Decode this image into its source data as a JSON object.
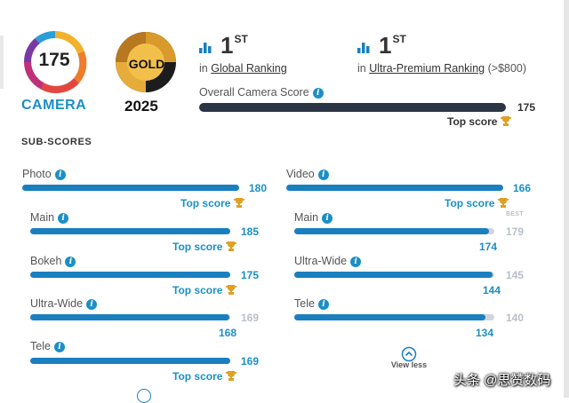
{
  "badge": {
    "camera_score": "175",
    "camera_label": "CAMERA",
    "gold_label": "GOLD",
    "gold_year": "2025"
  },
  "rankings": {
    "global": {
      "rank": "1",
      "suffix": "ST",
      "prefix": "in",
      "link": "Global Ranking"
    },
    "ultra": {
      "rank": "1",
      "suffix": "ST",
      "prefix": "in",
      "link": "Ultra-Premium Ranking",
      "note": "(>$800)"
    }
  },
  "overall": {
    "label": "Overall Camera Score",
    "value": "175",
    "max": 175,
    "top_score": "Top score"
  },
  "subscores_heading": "SUB-SCORES",
  "photo": {
    "label": "Photo",
    "value": "180",
    "top_score": "Top score",
    "items": [
      {
        "label": "Main",
        "value": "185",
        "top_score": "Top score"
      },
      {
        "label": "Bokeh",
        "value": "175",
        "top_score": "Top score"
      },
      {
        "label": "Ultra-Wide",
        "best": "169",
        "value": "168"
      },
      {
        "label": "Tele",
        "value": "169",
        "top_score": "Top score"
      }
    ]
  },
  "video": {
    "label": "Video",
    "value": "166",
    "top_score": "Top score",
    "items": [
      {
        "label": "Main",
        "best_label": "BEST",
        "best": "179",
        "value": "174"
      },
      {
        "label": "Ultra-Wide",
        "best": "145",
        "value": "144"
      },
      {
        "label": "Tele",
        "best": "140",
        "value": "134"
      }
    ],
    "view_less": "View less"
  },
  "fills": {
    "photo_main_ultrawide": 0.994,
    "video_main": 0.972,
    "video_ultrawide": 0.993,
    "video_tele": 0.957
  },
  "watermark": "头条 @思赞数码",
  "colors": {
    "accent": "#1a8fc7",
    "bar": "#1a7fbf",
    "track": "#d0d4dc",
    "dark_bar": "#2c3545",
    "gold": "#e0a020"
  }
}
